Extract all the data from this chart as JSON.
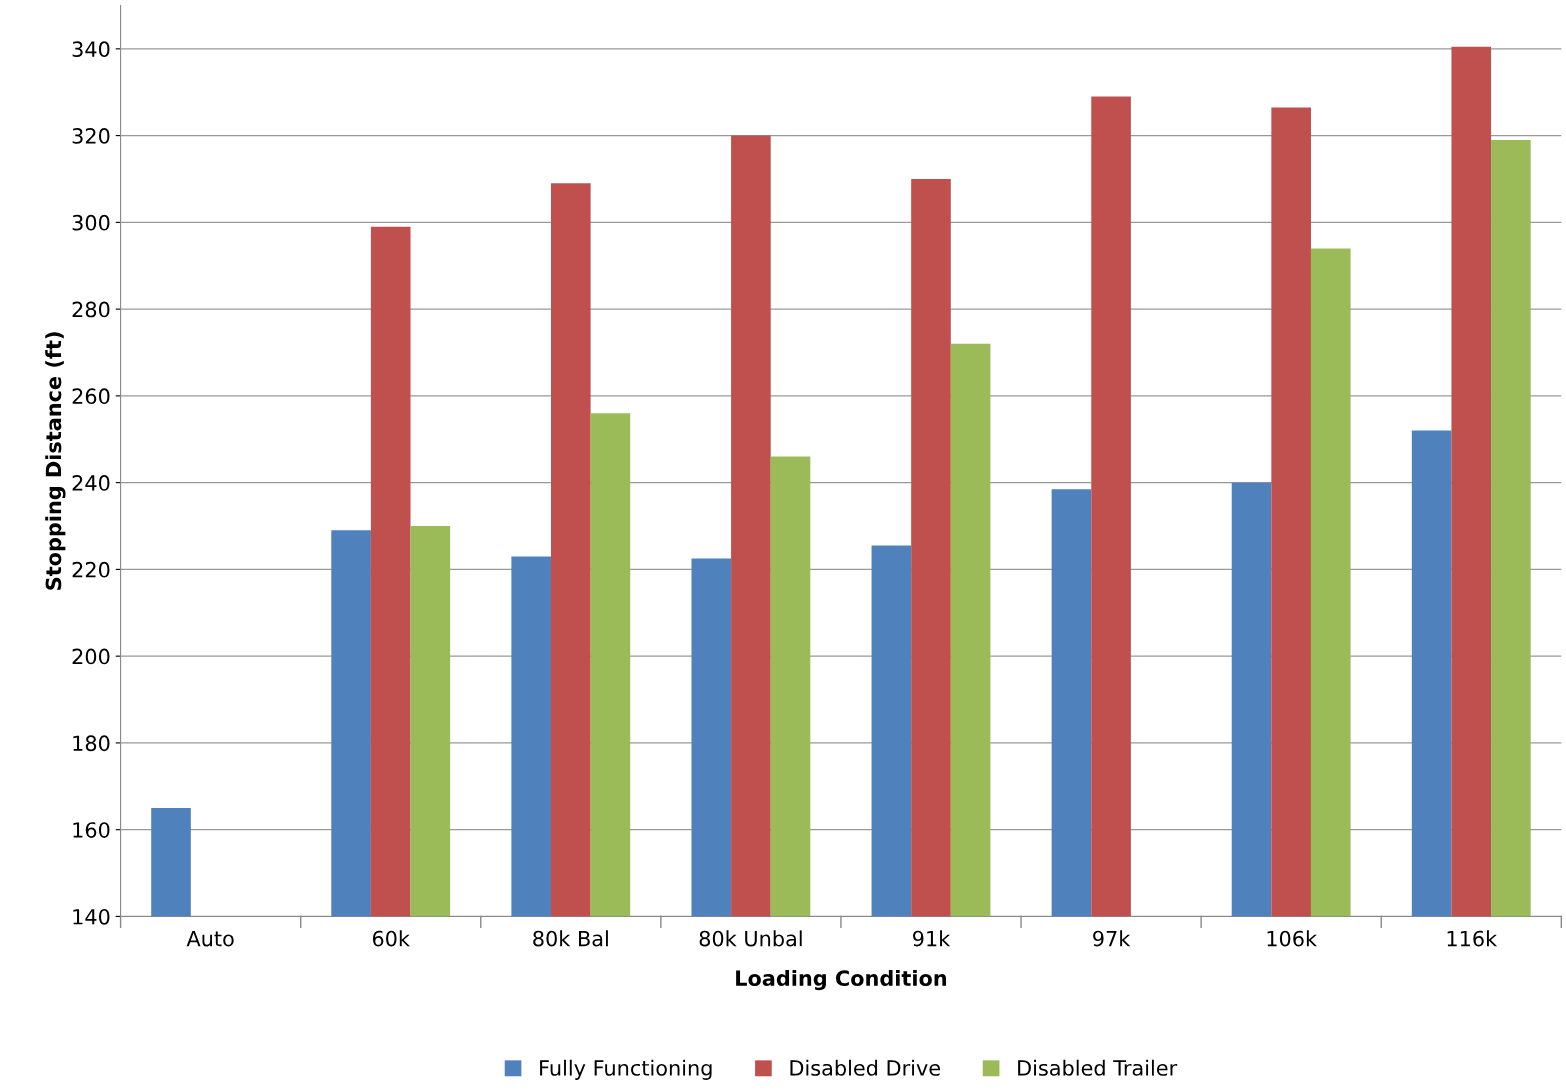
{
  "chart_data": {
    "type": "bar",
    "xlabel": "Loading Condition",
    "ylabel": "Stopping Distance (ft)",
    "categories": [
      "Auto",
      "60k",
      "80k Bal",
      "80k Unbal",
      "91k",
      "97k",
      "106k",
      "116k"
    ],
    "series": [
      {
        "name": "Fully Functioning",
        "color": "#4f81bd",
        "values": [
          165,
          229,
          223,
          222.5,
          225.5,
          238.5,
          240,
          252
        ]
      },
      {
        "name": "Disabled Drive",
        "color": "#c0504d",
        "values": [
          null,
          299,
          309,
          320,
          310,
          329,
          326.5,
          340.5
        ]
      },
      {
        "name": "Disabled Trailer",
        "color": "#9bbb59",
        "values": [
          null,
          230,
          256,
          246,
          272,
          null,
          294,
          319
        ]
      }
    ],
    "ylim": [
      140,
      350
    ],
    "yticks": [
      140,
      160,
      180,
      200,
      220,
      240,
      260,
      280,
      300,
      320,
      340
    ],
    "grid": "y",
    "legend": "bottom"
  }
}
